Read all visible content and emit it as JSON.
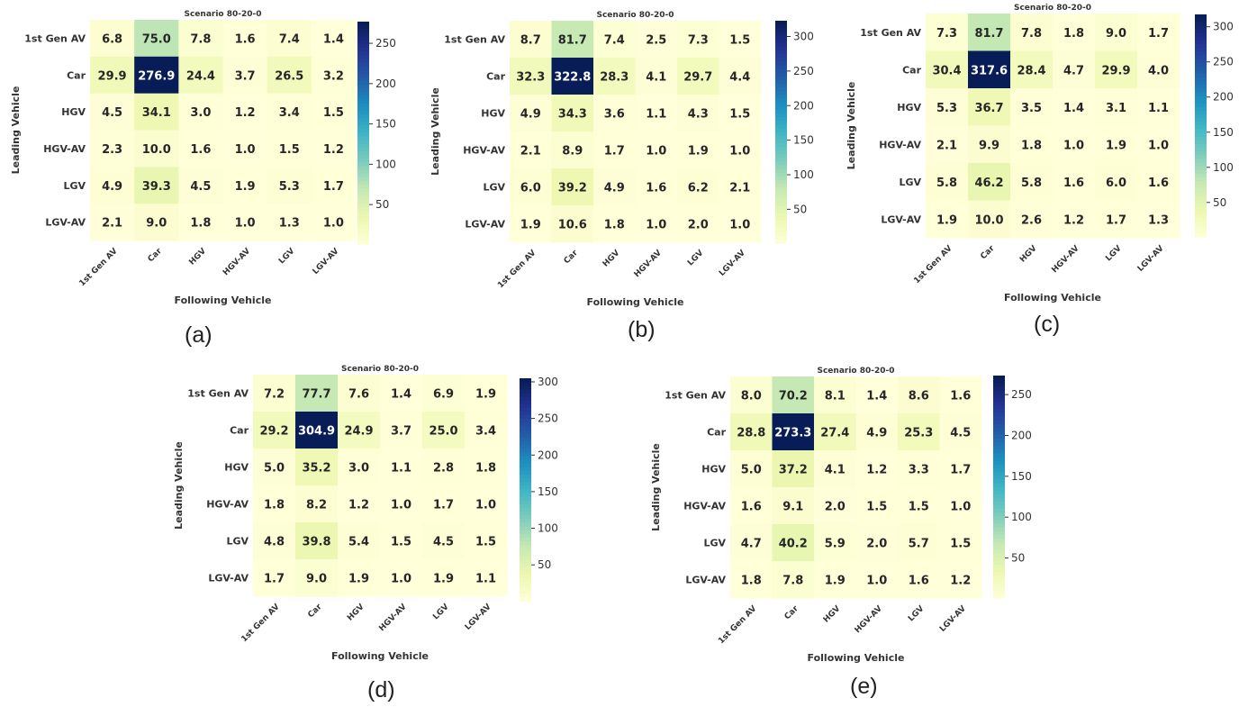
{
  "captions": [
    "(a)",
    "(b)",
    "(c)",
    "(d)",
    "(e)"
  ],
  "chart_data": [
    {
      "type": "heatmap",
      "title": "Scenario 80-20-0",
      "xlabel": "Following Vehicle",
      "ylabel": "Leading Vehicle",
      "x_categories": [
        "1st Gen AV",
        "Car",
        "HGV",
        "HGV-AV",
        "LGV",
        "LGV-AV"
      ],
      "y_categories": [
        "1st Gen AV",
        "Car",
        "HGV",
        "HGV-AV",
        "LGV",
        "LGV-AV"
      ],
      "values": [
        [
          6.8,
          75.0,
          7.8,
          1.6,
          7.4,
          1.4
        ],
        [
          29.9,
          276.9,
          24.4,
          3.7,
          26.5,
          3.2
        ],
        [
          4.5,
          34.1,
          3.0,
          1.2,
          3.4,
          1.5
        ],
        [
          2.3,
          10.0,
          1.6,
          1.0,
          1.5,
          1.2
        ],
        [
          4.9,
          39.3,
          4.5,
          1.9,
          5.3,
          1.7
        ],
        [
          2.1,
          9.0,
          1.8,
          1.0,
          1.3,
          1.0
        ]
      ],
      "colorbar_ticks": [
        50,
        100,
        150,
        200,
        250
      ],
      "colorbar_range": [
        1.0,
        276.9
      ],
      "colormap": "YlGnBu"
    },
    {
      "type": "heatmap",
      "title": "Scenario 80-20-0",
      "xlabel": "Following Vehicle",
      "ylabel": "Leading Vehicle",
      "x_categories": [
        "1st Gen AV",
        "Car",
        "HGV",
        "HGV-AV",
        "LGV",
        "LGV-AV"
      ],
      "y_categories": [
        "1st Gen AV",
        "Car",
        "HGV",
        "HGV-AV",
        "LGV",
        "LGV-AV"
      ],
      "values": [
        [
          8.7,
          81.7,
          7.4,
          2.5,
          7.3,
          1.5
        ],
        [
          32.3,
          322.8,
          28.3,
          4.1,
          29.7,
          4.4
        ],
        [
          4.9,
          34.3,
          3.6,
          1.1,
          4.3,
          1.5
        ],
        [
          2.1,
          8.9,
          1.7,
          1.0,
          1.9,
          1.0
        ],
        [
          6.0,
          39.2,
          4.9,
          1.6,
          6.2,
          2.1
        ],
        [
          1.9,
          10.6,
          1.8,
          1.0,
          2.0,
          1.0
        ]
      ],
      "colorbar_ticks": [
        50,
        100,
        150,
        200,
        250,
        300
      ],
      "colorbar_range": [
        1.0,
        322.8
      ],
      "colormap": "YlGnBu"
    },
    {
      "type": "heatmap",
      "title": "Scenario 80-20-0",
      "xlabel": "Following Vehicle",
      "ylabel": "Leading Vehicle",
      "x_categories": [
        "1st Gen AV",
        "Car",
        "HGV",
        "HGV-AV",
        "LGV",
        "LGV-AV"
      ],
      "y_categories": [
        "1st Gen AV",
        "Car",
        "HGV",
        "HGV-AV",
        "LGV",
        "LGV-AV"
      ],
      "values": [
        [
          7.3,
          81.7,
          7.8,
          1.8,
          9.0,
          1.7
        ],
        [
          30.4,
          317.6,
          28.4,
          4.7,
          29.9,
          4.0
        ],
        [
          5.3,
          36.7,
          3.5,
          1.4,
          3.1,
          1.1
        ],
        [
          2.1,
          9.9,
          1.8,
          1.0,
          1.9,
          1.0
        ],
        [
          5.8,
          46.2,
          5.8,
          1.6,
          6.0,
          1.6
        ],
        [
          1.9,
          10.0,
          2.6,
          1.2,
          1.7,
          1.3
        ]
      ],
      "colorbar_ticks": [
        50,
        100,
        150,
        200,
        250,
        300
      ],
      "colorbar_range": [
        1.0,
        317.6
      ],
      "colormap": "YlGnBu"
    },
    {
      "type": "heatmap",
      "title": "Scenario 80-20-0",
      "xlabel": "Following Vehicle",
      "ylabel": "Leading Vehicle",
      "x_categories": [
        "1st Gen AV",
        "Car",
        "HGV",
        "HGV-AV",
        "LGV",
        "LGV-AV"
      ],
      "y_categories": [
        "1st Gen AV",
        "Car",
        "HGV",
        "HGV-AV",
        "LGV",
        "LGV-AV"
      ],
      "values": [
        [
          7.2,
          77.7,
          7.6,
          1.4,
          6.9,
          1.9
        ],
        [
          29.2,
          304.9,
          24.9,
          3.7,
          25.0,
          3.4
        ],
        [
          5.0,
          35.2,
          3.0,
          1.1,
          2.8,
          1.8
        ],
        [
          1.8,
          8.2,
          1.2,
          1.0,
          1.7,
          1.0
        ],
        [
          4.8,
          39.8,
          5.4,
          1.5,
          4.5,
          1.5
        ],
        [
          1.7,
          9.0,
          1.9,
          1.0,
          1.9,
          1.1
        ]
      ],
      "colorbar_ticks": [
        50,
        100,
        150,
        200,
        250,
        300
      ],
      "colorbar_range": [
        1.0,
        304.9
      ],
      "colormap": "YlGnBu"
    },
    {
      "type": "heatmap",
      "title": "Scenario 80-20-0",
      "xlabel": "Following Vehicle",
      "ylabel": "Leading Vehicle",
      "x_categories": [
        "1st Gen AV",
        "Car",
        "HGV",
        "HGV-AV",
        "LGV",
        "LGV-AV"
      ],
      "y_categories": [
        "1st Gen AV",
        "Car",
        "HGV",
        "HGV-AV",
        "LGV",
        "LGV-AV"
      ],
      "values": [
        [
          8.0,
          70.2,
          8.1,
          1.4,
          8.6,
          1.6
        ],
        [
          28.8,
          273.3,
          27.4,
          4.9,
          25.3,
          4.5
        ],
        [
          5.0,
          37.2,
          4.1,
          1.2,
          3.3,
          1.7
        ],
        [
          1.6,
          9.1,
          2.0,
          1.5,
          1.5,
          1.0
        ],
        [
          4.7,
          40.2,
          5.9,
          2.0,
          5.7,
          1.5
        ],
        [
          1.8,
          7.8,
          1.9,
          1.0,
          1.6,
          1.2
        ]
      ],
      "colorbar_ticks": [
        50,
        100,
        150,
        200,
        250
      ],
      "colorbar_range": [
        1.0,
        273.3
      ],
      "colormap": "YlGnBu"
    }
  ]
}
